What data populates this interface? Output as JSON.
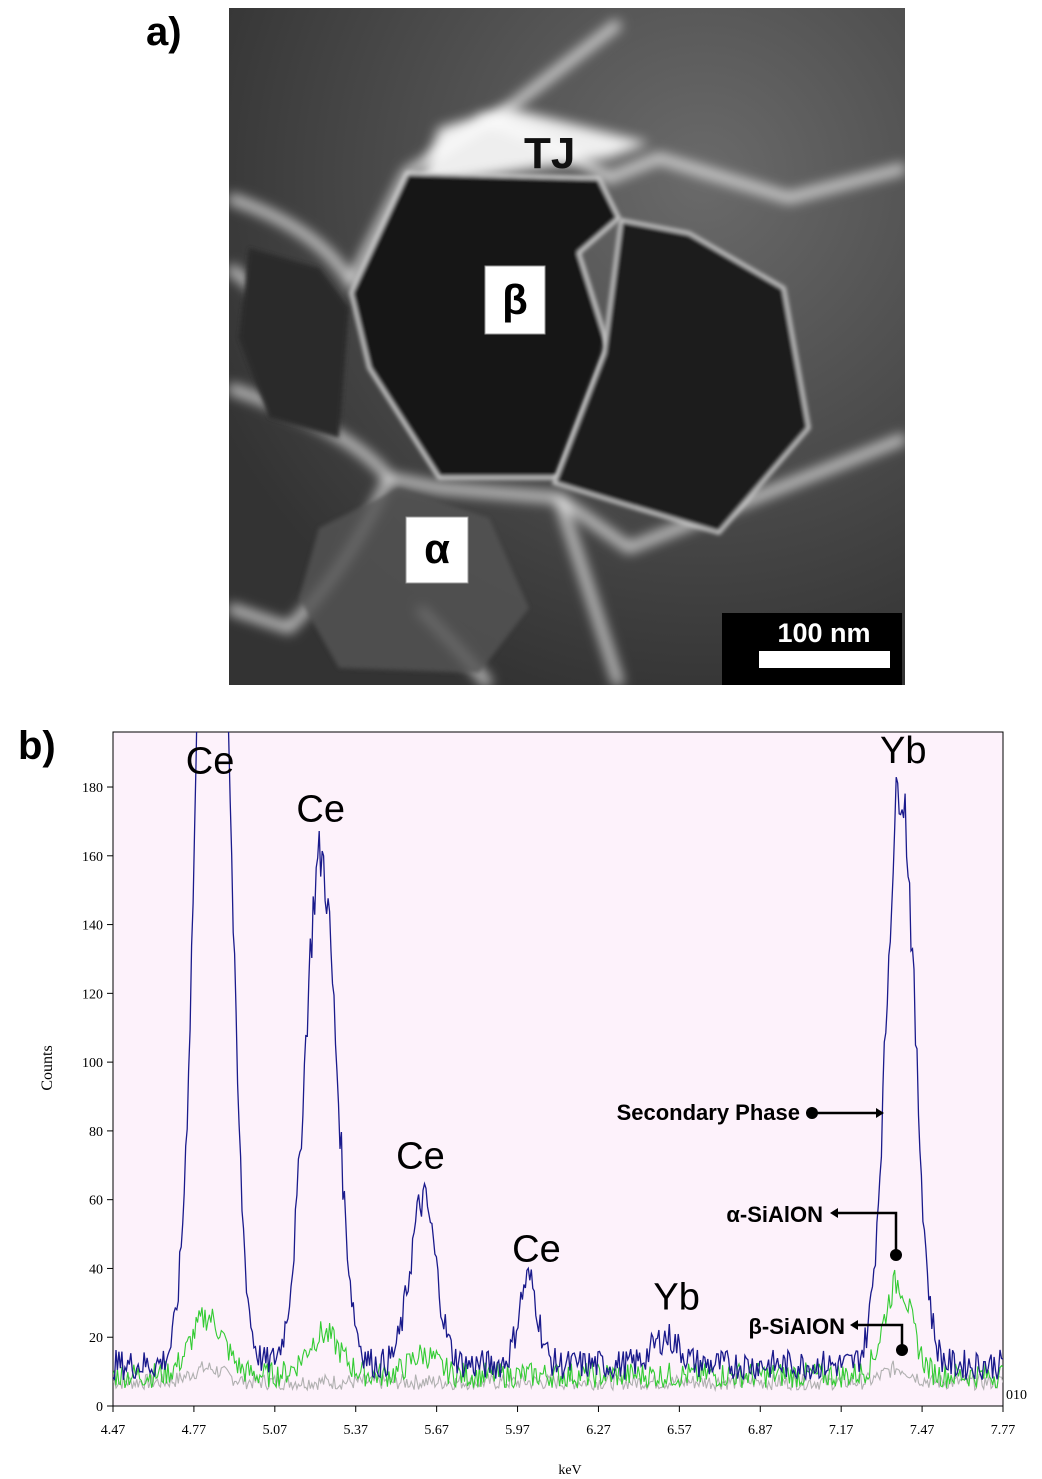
{
  "panel_a": {
    "label": "a)",
    "labels": {
      "triple_junction": "TJ",
      "beta": "β",
      "alpha": "α"
    },
    "scale_bar": "100 nm"
  },
  "panel_b": {
    "label": "b)"
  },
  "colors": {
    "secondary_phase": "#1a1a8c",
    "alpha_sialon": "#33cc33",
    "beta_sialon": "#b0b0b0",
    "plot_background": "#fdf2fb"
  },
  "chart_data": {
    "type": "line",
    "title": "",
    "xlabel": "keV",
    "ylabel": "Counts",
    "xlim": [
      4.47,
      7.77
    ],
    "ylim": [
      0,
      196
    ],
    "x_ticks": [
      "4.47",
      "4.77",
      "5.07",
      "5.37",
      "5.67",
      "5.97",
      "6.27",
      "6.57",
      "6.87",
      "7.17",
      "7.47",
      "7.77"
    ],
    "y_ticks": [
      "0",
      "20",
      "40",
      "60",
      "80",
      "100",
      "120",
      "140",
      "160",
      "180"
    ],
    "corner_label": "010",
    "grid": false,
    "series": [
      {
        "name": "Secondary Phase",
        "color": "#1a1a8c",
        "baseline": 12,
        "noise": 4,
        "peaks": [
          {
            "x": 4.84,
            "height": 330,
            "width": 0.055
          },
          {
            "x": 5.24,
            "height": 148,
            "width": 0.058
          },
          {
            "x": 5.62,
            "height": 48,
            "width": 0.048
          },
          {
            "x": 6.01,
            "height": 25,
            "width": 0.035
          },
          {
            "x": 6.52,
            "height": 8,
            "width": 0.05
          },
          {
            "x": 7.39,
            "height": 170,
            "width": 0.052
          }
        ]
      },
      {
        "name": "α-SiAlON",
        "color": "#33cc33",
        "baseline": 9,
        "noise": 3.5,
        "peaks": [
          {
            "x": 4.82,
            "height": 17,
            "width": 0.06
          },
          {
            "x": 5.25,
            "height": 12,
            "width": 0.06
          },
          {
            "x": 5.62,
            "height": 6,
            "width": 0.05
          },
          {
            "x": 7.38,
            "height": 27,
            "width": 0.05
          }
        ]
      },
      {
        "name": "β-SiAlON",
        "color": "#b0b0b0",
        "baseline": 7,
        "noise": 2.2,
        "peaks": [
          {
            "x": 4.82,
            "height": 4,
            "width": 0.06
          },
          {
            "x": 7.38,
            "height": 4,
            "width": 0.05
          }
        ]
      }
    ],
    "annotations": [
      {
        "text": "Ce",
        "x": 4.83,
        "y": 184
      },
      {
        "text": "Ce",
        "x": 5.24,
        "y": 170
      },
      {
        "text": "Ce",
        "x": 5.61,
        "y": 69
      },
      {
        "text": "Ce",
        "x": 6.04,
        "y": 42
      },
      {
        "text": "Yb",
        "x": 6.56,
        "y": 28
      },
      {
        "text": "Yb",
        "x": 7.4,
        "y": 187
      }
    ],
    "series_labels": [
      {
        "text": "Secondary Phase",
        "series": 0
      },
      {
        "text": "α-SiAlON",
        "series": 1
      },
      {
        "text": "β-SiAlON",
        "series": 2
      }
    ]
  }
}
